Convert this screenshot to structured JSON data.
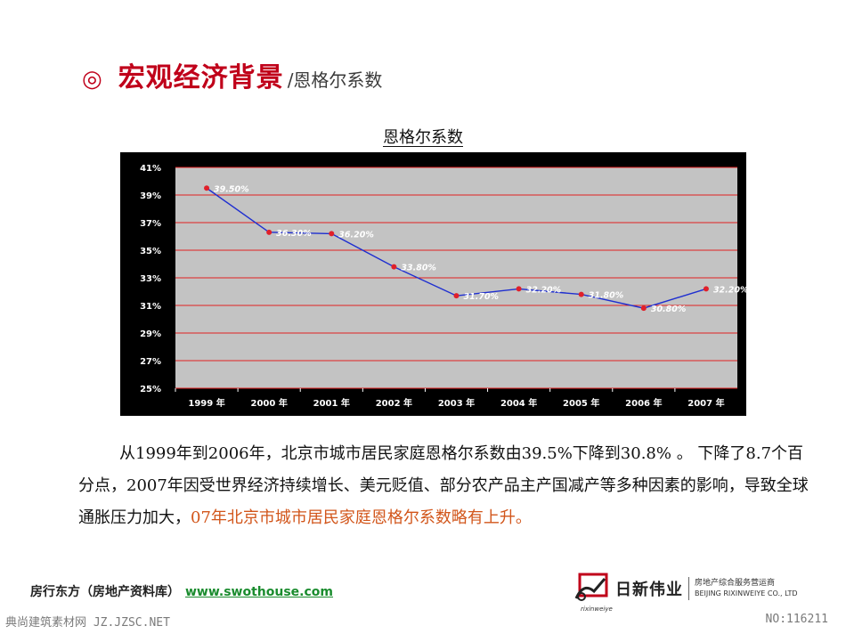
{
  "slide": {
    "title_mark": "◎",
    "title_main": "宏观经济背景",
    "title_sub": "/恩格尔系数"
  },
  "chart_data": {
    "type": "line",
    "title": "恩格尔系数",
    "categories": [
      "1999 年",
      "2000 年",
      "2001 年",
      "2002 年",
      "2003 年",
      "2004 年",
      "2005 年",
      "2006 年",
      "2007 年"
    ],
    "values": [
      39.5,
      36.3,
      36.2,
      33.8,
      31.7,
      32.2,
      31.8,
      30.8,
      32.2
    ],
    "data_labels": [
      "39.50%",
      "36.30%",
      "36.20%",
      "33.80%",
      "31.70%",
      "32.20%",
      "31.80%",
      "30.80%",
      "32.20%"
    ],
    "y_ticks": [
      "25%",
      "27%",
      "29%",
      "31%",
      "33%",
      "35%",
      "37%",
      "39%",
      "41%"
    ],
    "ylim": [
      25,
      41
    ],
    "grid": true,
    "colors": {
      "line": "#1f2fd0",
      "marker": "#e0202a",
      "grid": "#e02020",
      "plot_bg": "#c3c3c3",
      "frame_bg": "#000000"
    }
  },
  "body": {
    "text_normal": "从1999年到2006年，北京市城市居民家庭恩格尔系数由39.5%下降到30.8% 。 下降了8.7个百分点，2007年因受世界经济持续增长、美元贬值、部分农产品主产国减产等多种因素的影响，导致全球通胀压力加大，",
    "text_highlight": "07年北京市城市居民家庭恩格尔系数略有上升。"
  },
  "footer": {
    "source": "房行东方（房地产资料库）",
    "link": "www.swothouse.com",
    "logo_name": "日新伟业",
    "logo_desc_zh": "房地产综合服务营运商",
    "logo_desc_en": "BEIJING RIXINWEIYE CO., LTD",
    "logo_under": "rixinweiye",
    "watermark_left": "典尚建筑素材网 JZ.JZSC.NET",
    "watermark_right": "NO:116211"
  }
}
